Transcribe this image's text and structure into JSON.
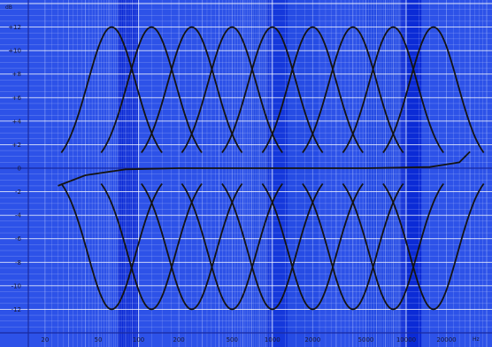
{
  "chart_data": {
    "type": "line",
    "title": "",
    "x_scale": "log",
    "xlim": [
      15,
      40000
    ],
    "ylim": [
      -14,
      14
    ],
    "y_unit_label": "dB",
    "x_unit_label": "Hz",
    "y_ticks": [
      {
        "value": 12,
        "label": "+12"
      },
      {
        "value": 10,
        "label": "+10"
      },
      {
        "value": 8,
        "label": "+8"
      },
      {
        "value": 6,
        "label": "+6"
      },
      {
        "value": 4,
        "label": "+4"
      },
      {
        "value": 2,
        "label": "+2"
      },
      {
        "value": 0,
        "label": "0"
      },
      {
        "value": -2,
        "label": "-2"
      },
      {
        "value": -4,
        "label": "-4"
      },
      {
        "value": -6,
        "label": "-6"
      },
      {
        "value": -8,
        "label": "-8"
      },
      {
        "value": -10,
        "label": "-10"
      },
      {
        "value": -12,
        "label": "-12"
      }
    ],
    "x_ticks": [
      {
        "value": 20,
        "label": "20"
      },
      {
        "value": 50,
        "label": "50"
      },
      {
        "value": 100,
        "label": "100"
      },
      {
        "value": 200,
        "label": "200"
      },
      {
        "value": 500,
        "label": "500"
      },
      {
        "value": 1000,
        "label": "1000"
      },
      {
        "value": 2000,
        "label": "2000"
      },
      {
        "value": 5000,
        "label": "5000"
      },
      {
        "value": 10000,
        "label": "10000"
      },
      {
        "value": 20000,
        "label": "20000"
      }
    ],
    "grid": true,
    "band_centers_hz": [
      63,
      125,
      250,
      500,
      1000,
      2000,
      4000,
      8000,
      16000
    ],
    "band_width_octaves": 1.4,
    "boost_peak_db": 12,
    "cut_peak_db": -12,
    "flat_response": {
      "x": [
        25,
        40,
        80,
        200,
        1000,
        5000,
        15000,
        25000,
        30000
      ],
      "y": [
        -1.5,
        -0.6,
        -0.1,
        0,
        0,
        0,
        0.1,
        0.5,
        1.4
      ]
    },
    "colors": {
      "background": "#2d52e8",
      "dark_band": "#0b2bd6",
      "grid_light": "#c9d6ff",
      "grid_dark": "#1a2aa0",
      "curve": "#141414"
    }
  }
}
